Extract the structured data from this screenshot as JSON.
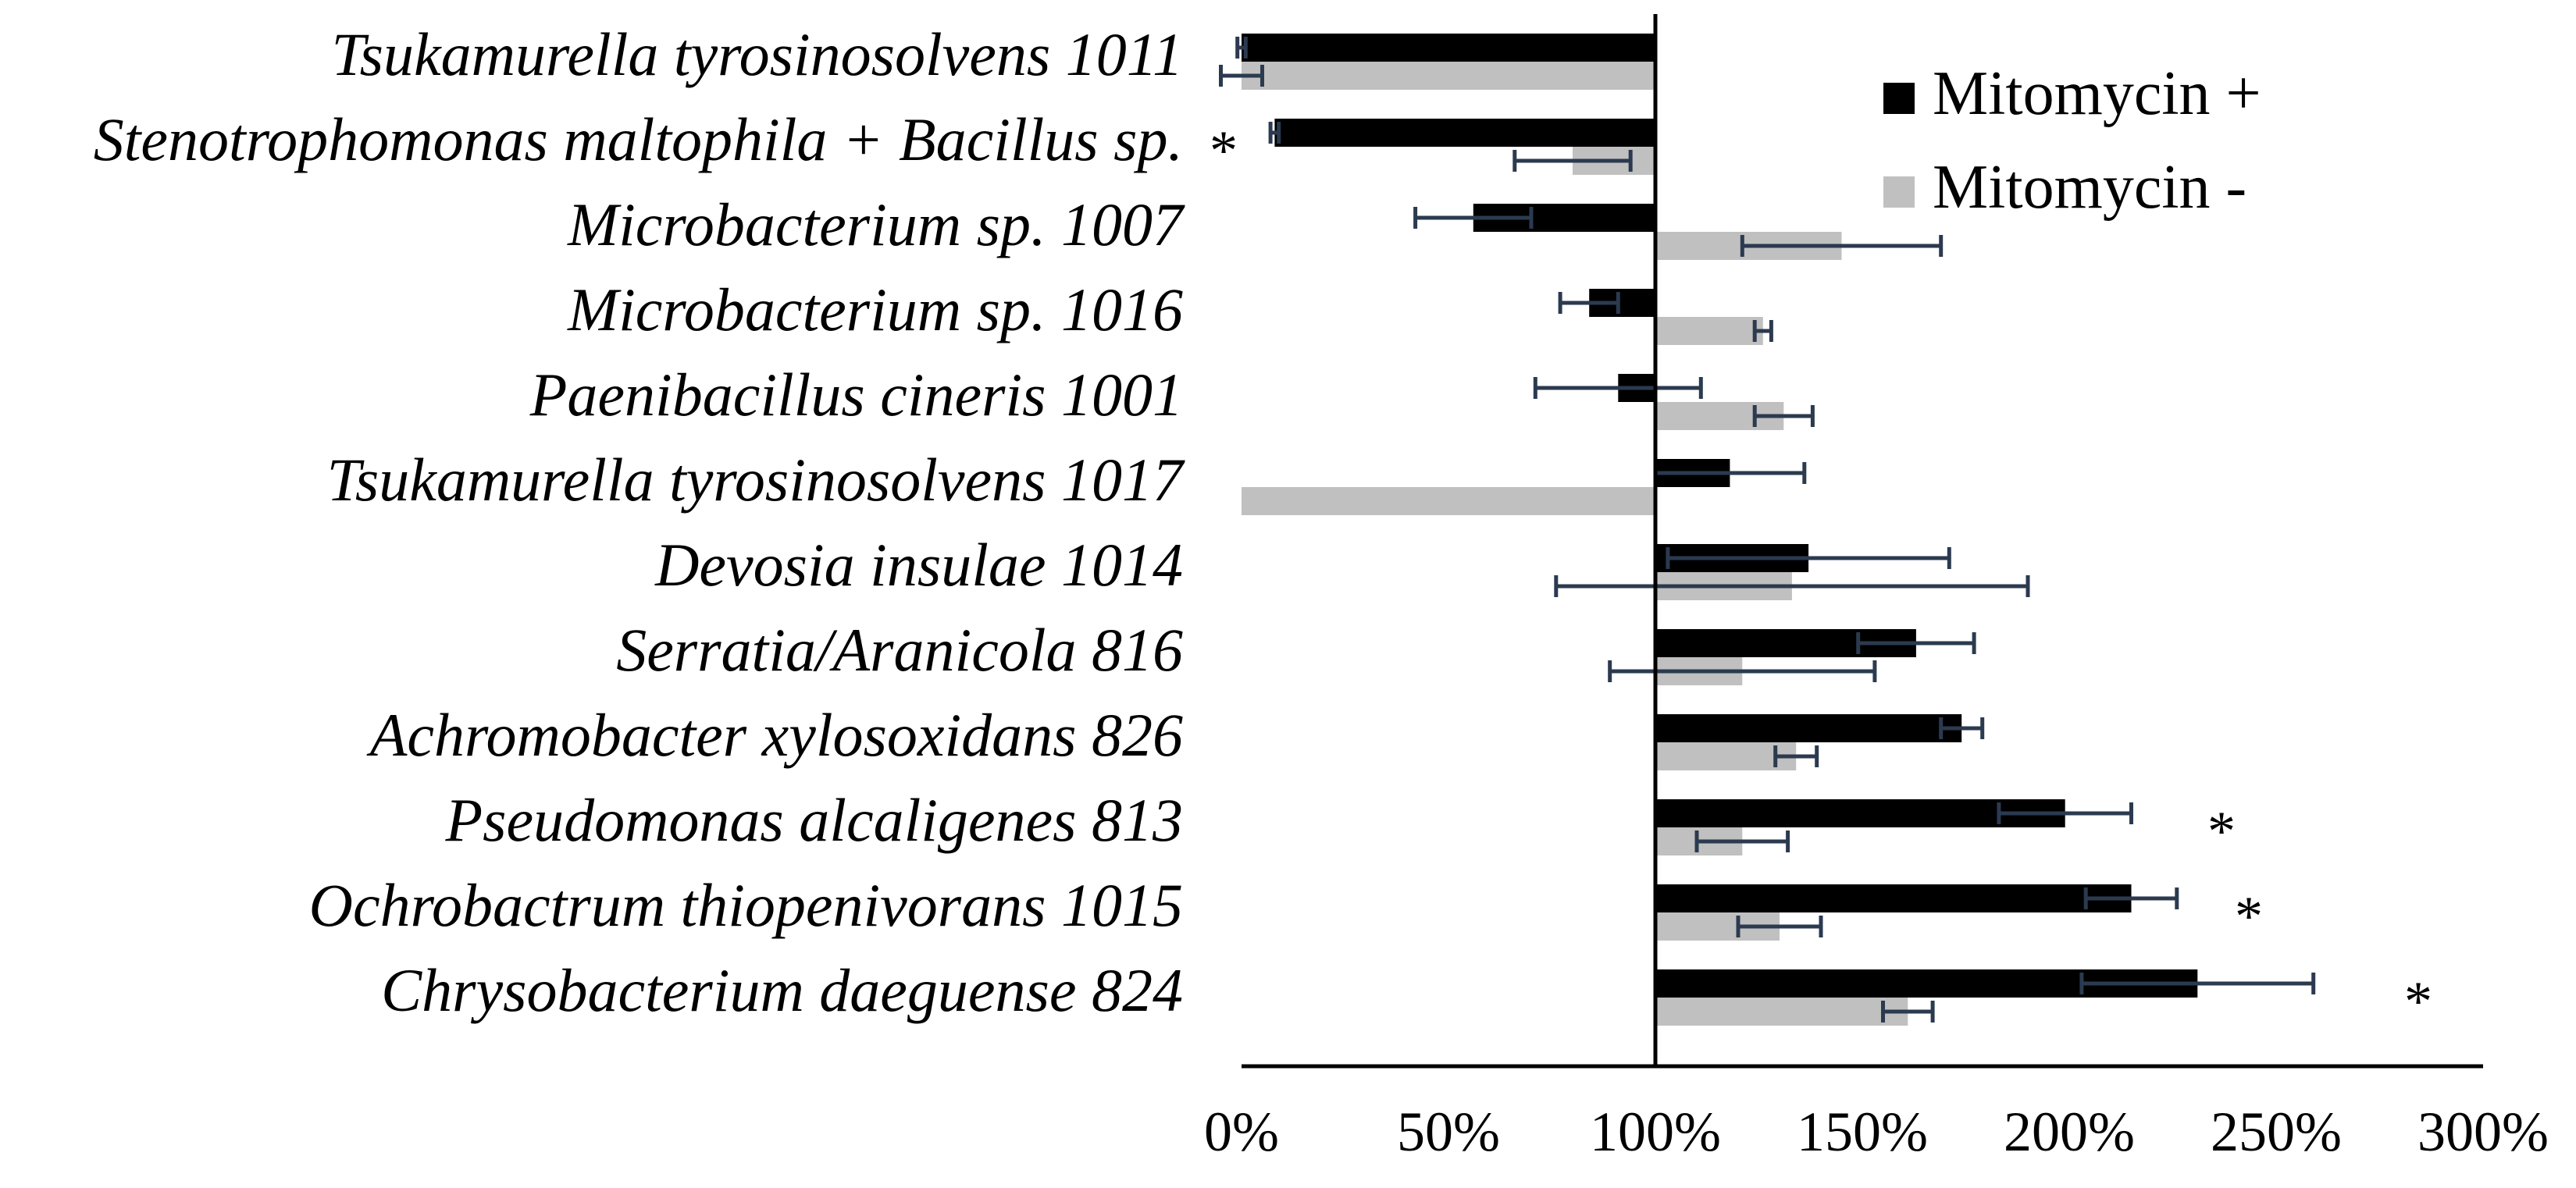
{
  "chart_data": {
    "type": "bar",
    "orientation": "horizontal",
    "title": "",
    "xlabel": "",
    "ylabel": "",
    "xlim": [
      0,
      300
    ],
    "x_ticks": [
      "0%",
      "50%",
      "100%",
      "150%",
      "200%",
      "250%",
      "300%"
    ],
    "x_tick_values": [
      0,
      50,
      100,
      150,
      200,
      250,
      300
    ],
    "baseline": 100,
    "grid": false,
    "legend_position": "top-right",
    "categories": [
      "Tsukamurella tyrosinosolvens 1011",
      "Stenotrophomonas maltophila + Bacillus sp.",
      "Microbacterium sp. 1007",
      "Microbacterium sp. 1016",
      "Paenibacillus cineris 1001",
      "Tsukamurella tyrosinosolvens 1017",
      "Devosia insulae 1014",
      "Serratia/Aranicola 816",
      "Achromobacter xylosoxidans 826",
      "Pseudomonas alcaligenes 813",
      "Ochrobactrum thiopenivorans 1015",
      "Chrysobacterium daeguense 824"
    ],
    "series": [
      {
        "name": "Mitomycin +",
        "color": "#000000",
        "values": [
          0,
          8,
          56,
          84,
          91,
          118,
          137,
          163,
          174,
          199,
          215,
          231
        ],
        "errors": [
          1,
          1,
          14,
          7,
          20,
          18,
          34,
          14,
          5,
          16,
          11,
          28
        ]
      },
      {
        "name": "Mitomycin -",
        "color": "#c0c0c0",
        "values": [
          0,
          80,
          145,
          126,
          131,
          0,
          133,
          121,
          134,
          121,
          130,
          161
        ],
        "errors": [
          5,
          14,
          24,
          2,
          7,
          0,
          57,
          32,
          5,
          11,
          10,
          6
        ]
      }
    ],
    "significance_markers": [
      {
        "category_index": 1,
        "text": "*"
      },
      {
        "category_index": 9,
        "text": "*"
      },
      {
        "category_index": 10,
        "text": "*"
      },
      {
        "category_index": 11,
        "text": "*"
      }
    ]
  }
}
